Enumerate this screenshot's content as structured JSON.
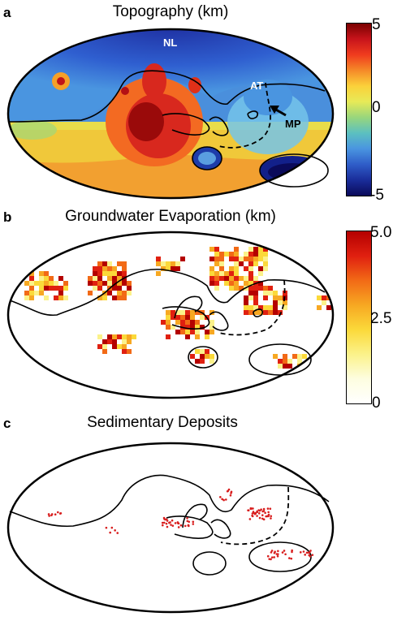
{
  "panels": [
    {
      "letter": "a",
      "title": "Topography (km)"
    },
    {
      "letter": "b",
      "title": "Groundwater Evaporation (km)"
    },
    {
      "letter": "c",
      "title": "Sedimentary Deposits"
    }
  ],
  "labels": {
    "nl": "NL",
    "at": "AT",
    "mp": "MP"
  },
  "colorbars": {
    "topography": {
      "max": "5",
      "mid": "0",
      "min": "-5",
      "colors": [
        "#7a0000",
        "#c8141b",
        "#f03c1e",
        "#f58a28",
        "#fbd13a",
        "#e7ea58",
        "#98d67c",
        "#5cc0c0",
        "#4a95e0",
        "#2f5dc8",
        "#1a2d9a",
        "#0a0a5a"
      ]
    },
    "evaporation": {
      "max": "5.0",
      "mid": "2.5",
      "min": "0",
      "colors": [
        "#b40000",
        "#e02010",
        "#f26a16",
        "#f7a822",
        "#fbd93a",
        "#fbf28a",
        "#fdfde0",
        "#ffffff"
      ]
    }
  },
  "colors": {
    "outline": "#000000",
    "deposit": "#d81e1e"
  }
}
